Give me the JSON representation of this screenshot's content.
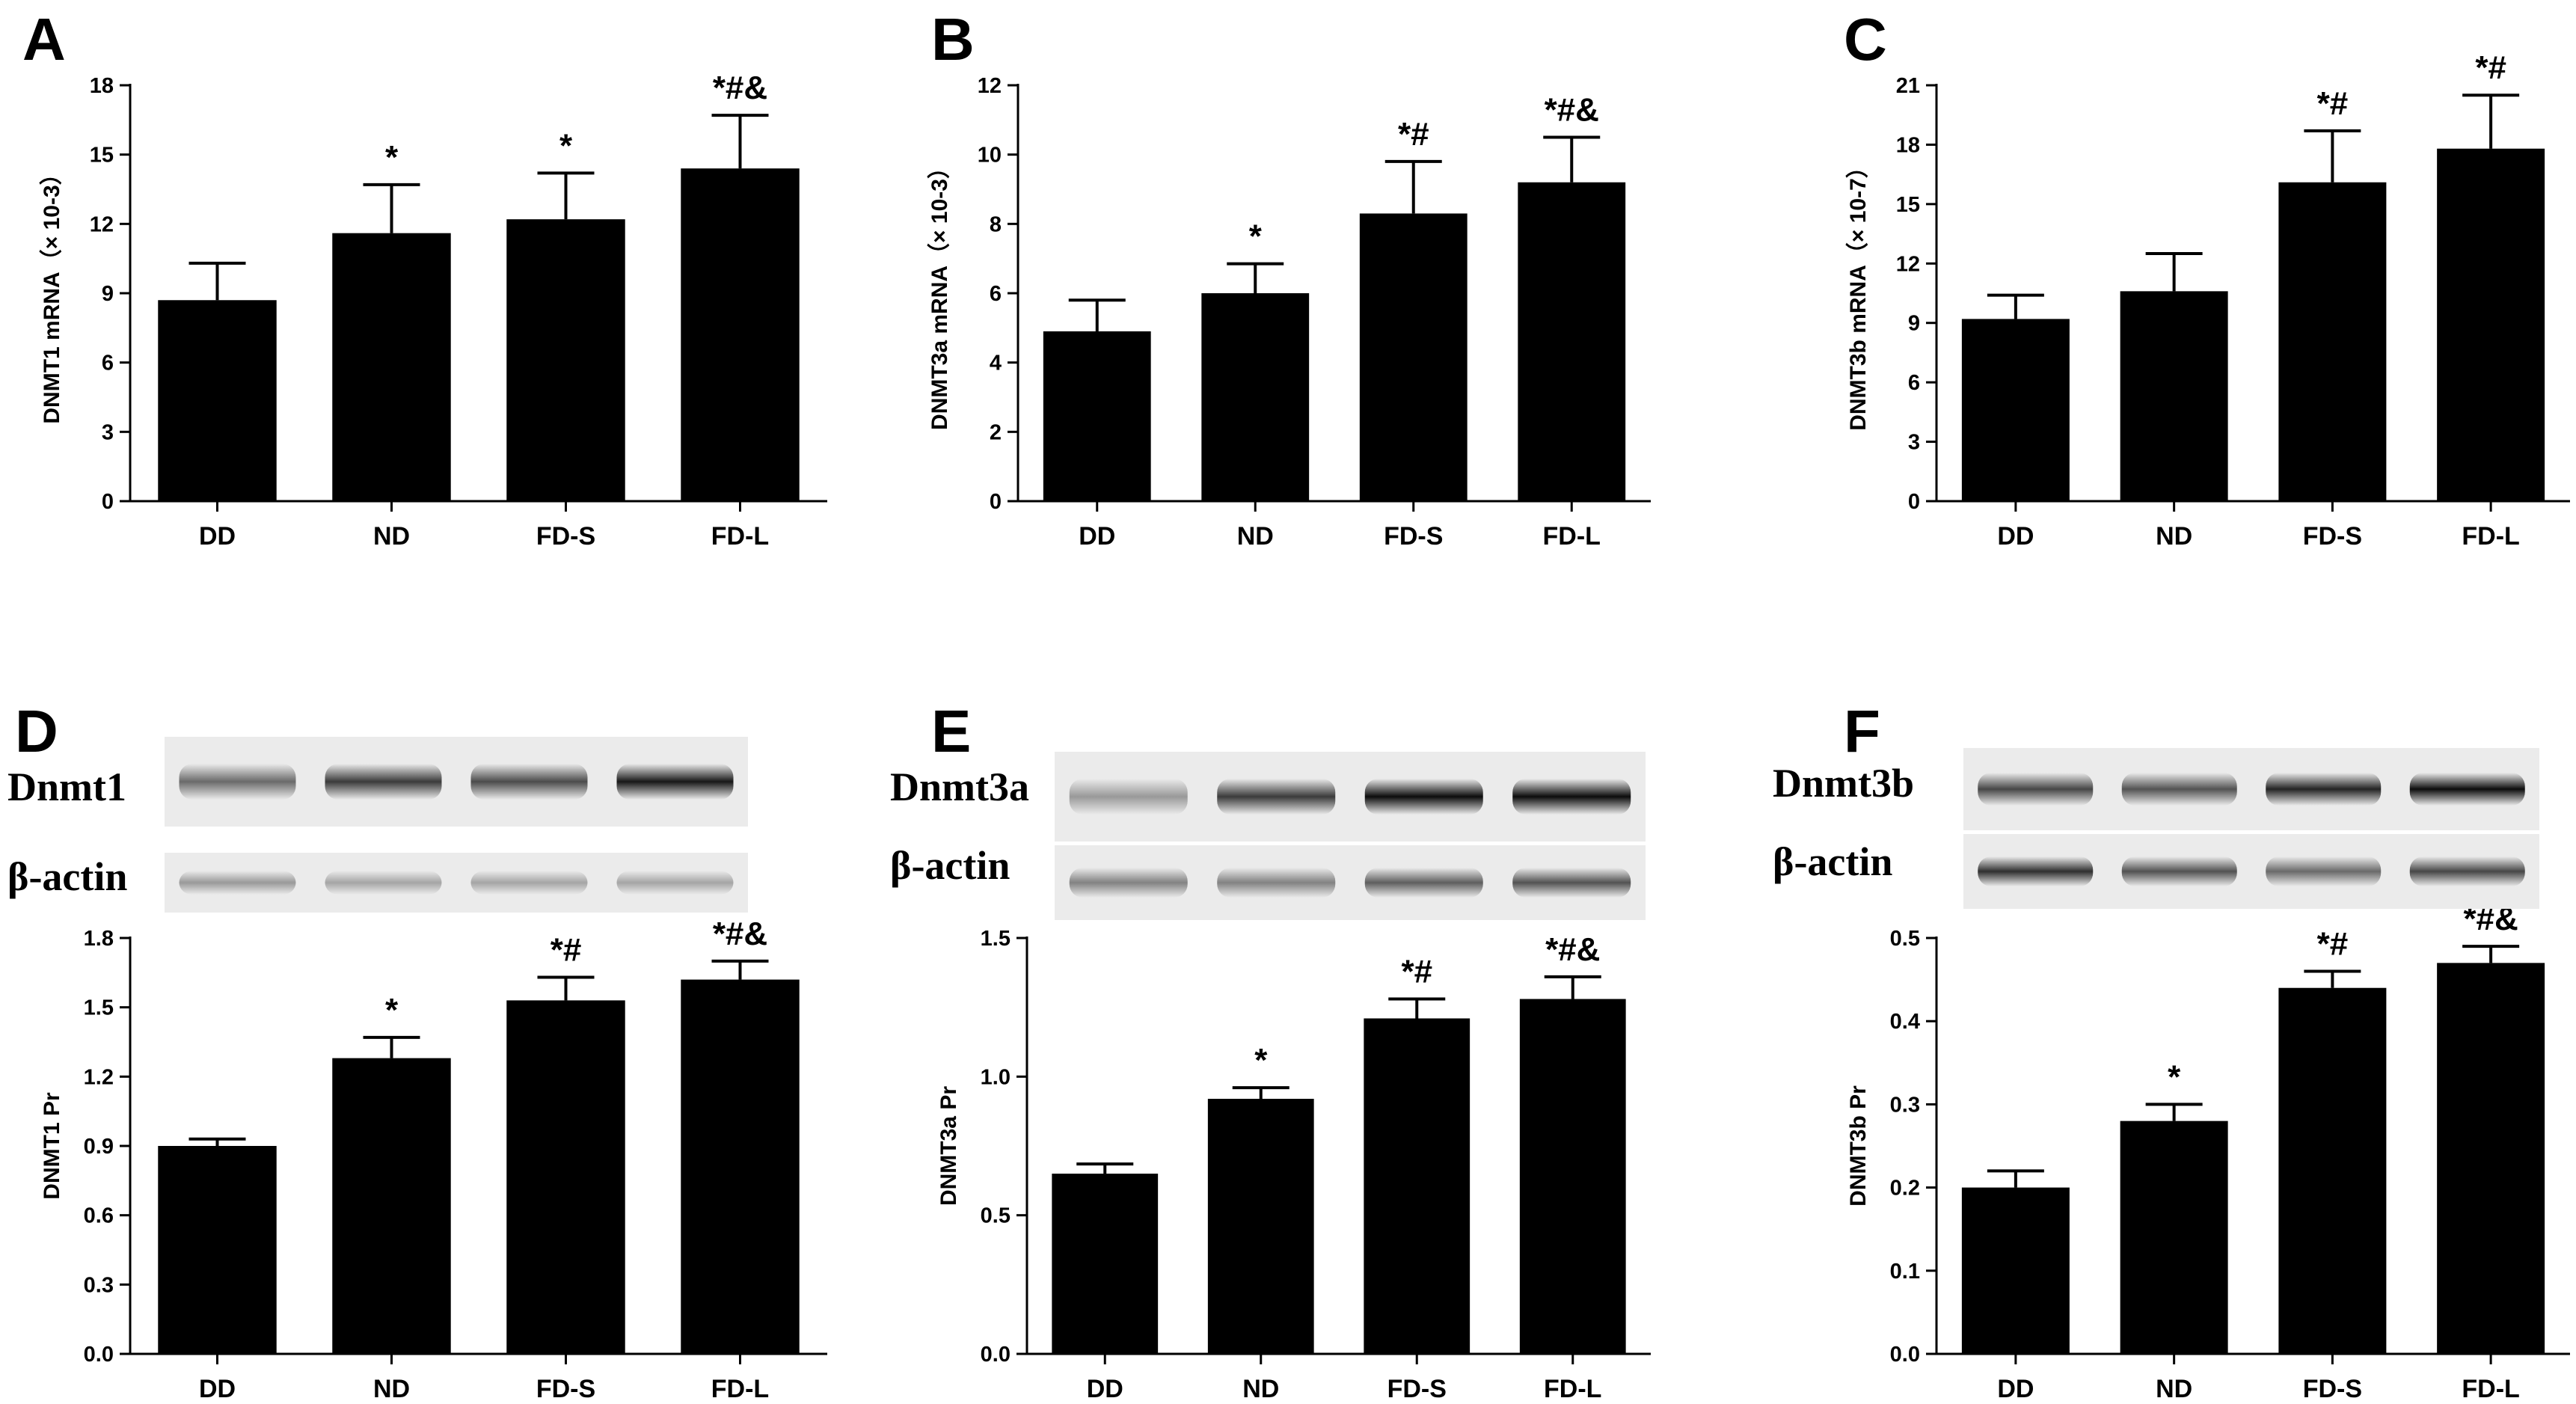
{
  "chart_data": [
    {
      "panel": "A",
      "type": "bar",
      "categories": [
        "DD",
        "ND",
        "FD-S",
        "FD-L"
      ],
      "values": [
        8.7,
        11.6,
        12.2,
        14.4
      ],
      "errors": [
        1.6,
        2.1,
        2.0,
        2.3
      ],
      "significance": [
        "",
        "*",
        "*",
        "*#&"
      ],
      "ylabel": "DNMT1 mRNA（× 10-3）",
      "ylim": [
        0,
        18
      ],
      "yticks": [
        "0",
        "3",
        "6",
        "9",
        "12",
        "15",
        "18"
      ]
    },
    {
      "panel": "B",
      "type": "bar",
      "categories": [
        "DD",
        "ND",
        "FD-S",
        "FD-L"
      ],
      "values": [
        4.9,
        6.0,
        8.3,
        9.2
      ],
      "errors": [
        0.9,
        0.85,
        1.5,
        1.3
      ],
      "significance": [
        "",
        "*",
        "*#",
        "*#&"
      ],
      "ylabel": "DNMT3a mRNA（× 10-3）",
      "ylim": [
        0,
        12
      ],
      "yticks": [
        "0",
        "2",
        "4",
        "6",
        "8",
        "10",
        "12"
      ]
    },
    {
      "panel": "C",
      "type": "bar",
      "categories": [
        "DD",
        "ND",
        "FD-S",
        "FD-L"
      ],
      "values": [
        9.2,
        10.6,
        16.1,
        17.8
      ],
      "errors": [
        1.2,
        1.9,
        2.6,
        2.7
      ],
      "significance": [
        "",
        "",
        "*#",
        "*#"
      ],
      "ylabel": "DNMT3b mRNA（× 10-7）",
      "ylim": [
        0,
        21
      ],
      "yticks": [
        "0",
        "3",
        "6",
        "9",
        "12",
        "15",
        "18",
        "21"
      ]
    },
    {
      "panel": "D",
      "type": "bar",
      "blot_labels": [
        "Dnmt1",
        "β-actin"
      ],
      "categories": [
        "DD",
        "ND",
        "FD-S",
        "FD-L"
      ],
      "values": [
        0.9,
        1.28,
        1.53,
        1.62
      ],
      "errors": [
        0.03,
        0.09,
        0.1,
        0.08
      ],
      "significance": [
        "",
        "*",
        "*#",
        "*#&"
      ],
      "ylabel": "DNMT1 Pr",
      "ylim": [
        0,
        1.8
      ],
      "yticks": [
        "0.0",
        "0.3",
        "0.6",
        "0.9",
        "1.2",
        "1.5",
        "1.8"
      ]
    },
    {
      "panel": "E",
      "type": "bar",
      "blot_labels": [
        "Dnmt3a",
        "β-actin"
      ],
      "categories": [
        "DD",
        "ND",
        "FD-S",
        "FD-L"
      ],
      "values": [
        0.65,
        0.92,
        1.21,
        1.28
      ],
      "errors": [
        0.035,
        0.04,
        0.07,
        0.08
      ],
      "significance": [
        "",
        "*",
        "*#",
        "*#&"
      ],
      "ylabel": "DNMT3a Pr",
      "ylim": [
        0,
        1.5
      ],
      "yticks": [
        "0.0",
        "0.5",
        "1.0",
        "1.5"
      ]
    },
    {
      "panel": "F",
      "type": "bar",
      "blot_labels": [
        "Dnmt3b",
        "β-actin"
      ],
      "categories": [
        "DD",
        "ND",
        "FD-S",
        "FD-L"
      ],
      "values": [
        0.2,
        0.28,
        0.44,
        0.47
      ],
      "errors": [
        0.02,
        0.02,
        0.02,
        0.02
      ],
      "significance": [
        "",
        "*",
        "*#",
        "*#&"
      ],
      "ylabel": "DNMT3b Pr",
      "ylim": [
        0,
        0.5
      ],
      "yticks": [
        "0.0",
        "0.1",
        "0.2",
        "0.3",
        "0.4",
        "0.5"
      ]
    }
  ]
}
